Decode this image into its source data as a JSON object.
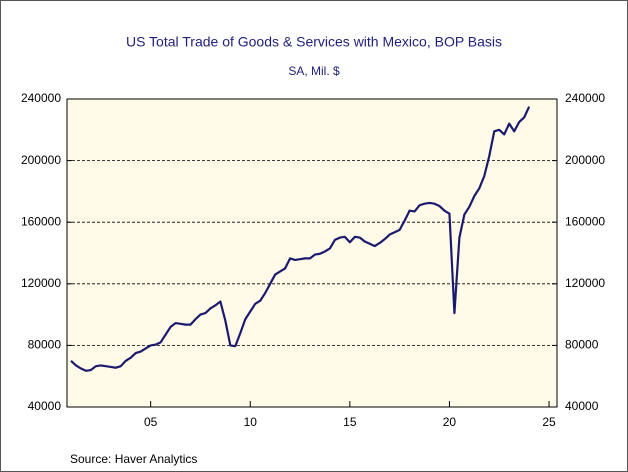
{
  "chart_data": {
    "type": "line",
    "title": "US Total Trade of Goods & Services with Mexico, BOP Basis",
    "subtitle": "SA, Mil. $",
    "source": "Source:  Haver Analytics",
    "x": [
      2001.0,
      2001.25,
      2001.5,
      2001.75,
      2002.0,
      2002.25,
      2002.5,
      2002.75,
      2003.0,
      2003.25,
      2003.5,
      2003.75,
      2004.0,
      2004.25,
      2004.5,
      2004.75,
      2005.0,
      2005.25,
      2005.5,
      2005.75,
      2006.0,
      2006.25,
      2006.5,
      2006.75,
      2007.0,
      2007.25,
      2007.5,
      2007.75,
      2008.0,
      2008.25,
      2008.5,
      2008.75,
      2009.0,
      2009.25,
      2009.5,
      2009.75,
      2010.0,
      2010.25,
      2010.5,
      2010.75,
      2011.0,
      2011.25,
      2011.5,
      2011.75,
      2012.0,
      2012.25,
      2012.5,
      2012.75,
      2013.0,
      2013.25,
      2013.5,
      2013.75,
      2014.0,
      2014.25,
      2014.5,
      2014.75,
      2015.0,
      2015.25,
      2015.5,
      2015.75,
      2016.0,
      2016.25,
      2016.5,
      2016.75,
      2017.0,
      2017.25,
      2017.5,
      2017.75,
      2018.0,
      2018.25,
      2018.5,
      2018.75,
      2019.0,
      2019.25,
      2019.5,
      2019.75,
      2020.0,
      2020.25,
      2020.5,
      2020.75,
      2021.0,
      2021.25,
      2021.5,
      2021.75,
      2022.0,
      2022.25,
      2022.5,
      2022.75,
      2023.0,
      2023.25,
      2023.5,
      2023.75,
      2024.0
    ],
    "series": [
      {
        "color": "#1a1a6e",
        "values": [
          70000,
          67000,
          65000,
          63500,
          64000,
          66500,
          67000,
          66500,
          66000,
          65500,
          66500,
          70000,
          72000,
          75000,
          76000,
          78000,
          80000,
          80500,
          82000,
          87000,
          92000,
          94500,
          94000,
          93500,
          93500,
          97000,
          100000,
          101000,
          104000,
          106000,
          108500,
          96000,
          80000,
          79500,
          88000,
          97000,
          102000,
          107000,
          109000,
          114000,
          120000,
          126000,
          128000,
          130000,
          136500,
          135500,
          136000,
          136500,
          136500,
          139000,
          139500,
          141000,
          143000,
          148500,
          150000,
          150500,
          147000,
          150500,
          150000,
          147500,
          146000,
          144500,
          146500,
          149000,
          152000,
          153500,
          155000,
          161000,
          167500,
          167000,
          171000,
          172000,
          172500,
          172000,
          170500,
          167500,
          165500,
          101000,
          150000,
          165000,
          170000,
          177000,
          182000,
          190000,
          203000,
          219000,
          220000,
          217000,
          224000,
          219000,
          225000,
          228000,
          235000
        ]
      }
    ],
    "xlim": [
      2000.8,
      2025.4
    ],
    "xticks": [
      {
        "value": 2005,
        "label": "05"
      },
      {
        "value": 2010,
        "label": "10"
      },
      {
        "value": 2015,
        "label": "15"
      },
      {
        "value": 2020,
        "label": "20"
      },
      {
        "value": 2025,
        "label": "25"
      }
    ],
    "ylim": [
      40000,
      240000
    ],
    "yticks": [
      40000,
      80000,
      120000,
      160000,
      200000,
      240000
    ],
    "y2lim": [
      40000,
      240000
    ],
    "y2ticks": [
      40000,
      80000,
      120000,
      160000,
      200000,
      240000
    ],
    "grid": true
  }
}
